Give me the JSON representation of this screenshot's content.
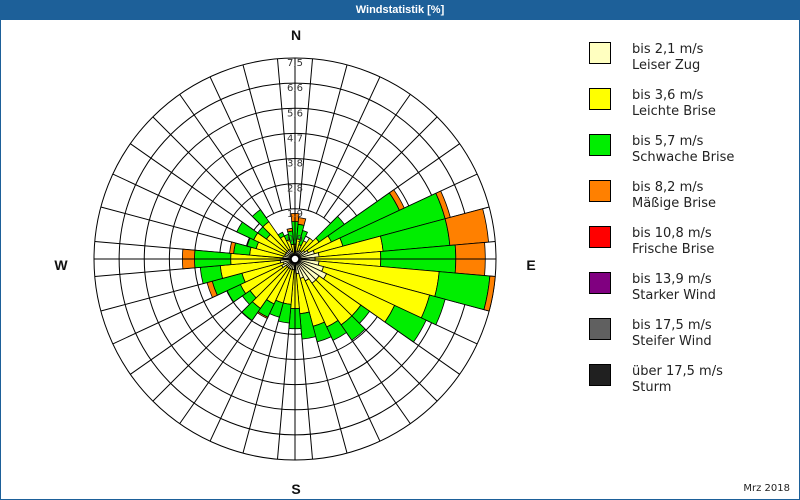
{
  "header": {
    "title": "Windstatistik [%]"
  },
  "footer": {
    "period": "Mrz 2018"
  },
  "compass": {
    "north": "N",
    "east": "E",
    "south": "S",
    "west": "W"
  },
  "legend": [
    {
      "range": "bis 2,1 m/s",
      "name": "Leiser Zug",
      "color": "#ffffc0"
    },
    {
      "range": "bis 3,6 m/s",
      "name": "Leichte Brise",
      "color": "#ffff00"
    },
    {
      "range": "bis 5,7 m/s",
      "name": "Schwache Brise",
      "color": "#00ee00"
    },
    {
      "range": "bis 8,2 m/s",
      "name": "Mäßige Brise",
      "color": "#ff8000"
    },
    {
      "range": "bis 10,8 m/s",
      "name": "Frische Brise",
      "color": "#ff0000"
    },
    {
      "range": "bis 13,9 m/s",
      "name": "Starker Wind",
      "color": "#800080"
    },
    {
      "range": "bis 17,5 m/s",
      "name": "Steifer Wind",
      "color": "#606060"
    },
    {
      "range": "über 17,5 m/s",
      "name": "Sturm",
      "color": "#202020"
    }
  ],
  "chart_data": {
    "type": "wind-rose",
    "title": "Windstatistik [%]",
    "period": "Mrz 2018",
    "unit": "%",
    "radial_ticks": [
      "0,9",
      "1,9",
      "2,8",
      "3,8",
      "4,7",
      "5,6",
      "6,6",
      "7,5"
    ],
    "radial_max": 7.5,
    "sector_width_deg": 10,
    "series_names": [
      "bis 2,1 m/s",
      "bis 3,6 m/s",
      "bis 5,7 m/s",
      "bis 8,2 m/s",
      "bis 10,8 m/s",
      "bis 13,9 m/s",
      "bis 17,5 m/s",
      "über 17,5 m/s"
    ],
    "note": "values are cumulative percentages per direction (outer edge of each speed class)",
    "directions": [
      {
        "deg": 0,
        "cum": [
          0.2,
          0.55,
          1.4,
          1.7
        ]
      },
      {
        "deg": 10,
        "cum": [
          0.3,
          0.75,
          1.3,
          1.55
        ]
      },
      {
        "deg": 20,
        "cum": [
          0.3,
          0.55,
          1.1
        ]
      },
      {
        "deg": 30,
        "cum": [
          0.35,
          0.75
        ]
      },
      {
        "deg": 40,
        "cum": [
          0.35,
          0.95
        ]
      },
      {
        "deg": 50,
        "cum": [
          0.45,
          1.1,
          2.25
        ]
      },
      {
        "deg": 60,
        "cum": [
          0.55,
          1.5,
          4.3,
          4.5
        ]
      },
      {
        "deg": 70,
        "cum": [
          0.75,
          1.85,
          5.8,
          6.0
        ]
      },
      {
        "deg": 80,
        "cum": [
          0.9,
          3.3,
          5.8,
          7.25
        ]
      },
      {
        "deg": 90,
        "cum": [
          0.75,
          3.2,
          6.0,
          7.1
        ]
      },
      {
        "deg": 100,
        "cum": [
          0.9,
          5.4,
          7.3,
          7.5
        ]
      },
      {
        "deg": 110,
        "cum": [
          1.1,
          5.2,
          5.8
        ]
      },
      {
        "deg": 120,
        "cum": [
          1.3,
          4.1,
          5.4
        ]
      },
      {
        "deg": 130,
        "cum": [
          1.1,
          3.0,
          3.4
        ]
      },
      {
        "deg": 140,
        "cum": [
          1.1,
          3.0,
          3.7
        ]
      },
      {
        "deg": 150,
        "cum": [
          0.9,
          2.8,
          3.35
        ]
      },
      {
        "deg": 160,
        "cum": [
          0.75,
          2.6,
          3.2
        ]
      },
      {
        "deg": 170,
        "cum": [
          0.55,
          2.05,
          3.0
        ]
      },
      {
        "deg": 180,
        "cum": [
          0.4,
          1.85,
          2.6
        ]
      },
      {
        "deg": 190,
        "cum": [
          0.4,
          1.7,
          2.4
        ]
      },
      {
        "deg": 200,
        "cum": [
          0.4,
          1.7,
          2.25
        ]
      },
      {
        "deg": 210,
        "cum": [
          0.4,
          1.85,
          2.4,
          2.45
        ]
      },
      {
        "deg": 220,
        "cum": [
          0.4,
          2.25,
          2.8
        ]
      },
      {
        "deg": 230,
        "cum": [
          0.4,
          2.05,
          2.4
        ]
      },
      {
        "deg": 240,
        "cum": [
          0.55,
          2.25,
          2.8
        ]
      },
      {
        "deg": 250,
        "cum": [
          0.45,
          2.05,
          3.2,
          3.4
        ]
      },
      {
        "deg": 260,
        "cum": [
          0.55,
          2.8,
          3.55
        ]
      },
      {
        "deg": 270,
        "cum": [
          0.45,
          2.4,
          3.75,
          4.2
        ]
      },
      {
        "deg": 280,
        "cum": [
          0.45,
          1.7,
          2.3,
          2.45
        ]
      },
      {
        "deg": 290,
        "cum": [
          0.4,
          1.5,
          1.85
        ]
      },
      {
        "deg": 300,
        "cum": [
          0.4,
          1.7,
          2.4
        ]
      },
      {
        "deg": 310,
        "cum": [
          0.4,
          1.3,
          1.7
        ]
      },
      {
        "deg": 320,
        "cum": [
          0.4,
          1.7,
          2.25
        ]
      },
      {
        "deg": 330,
        "cum": [
          0.4,
          0.95,
          1.1
        ]
      },
      {
        "deg": 340,
        "cum": [
          0.3,
          0.75,
          0.95
        ]
      },
      {
        "deg": 350,
        "cum": [
          0.2,
          0.55,
          1.05,
          1.15
        ]
      }
    ],
    "legend_position": "right",
    "grid": true
  }
}
